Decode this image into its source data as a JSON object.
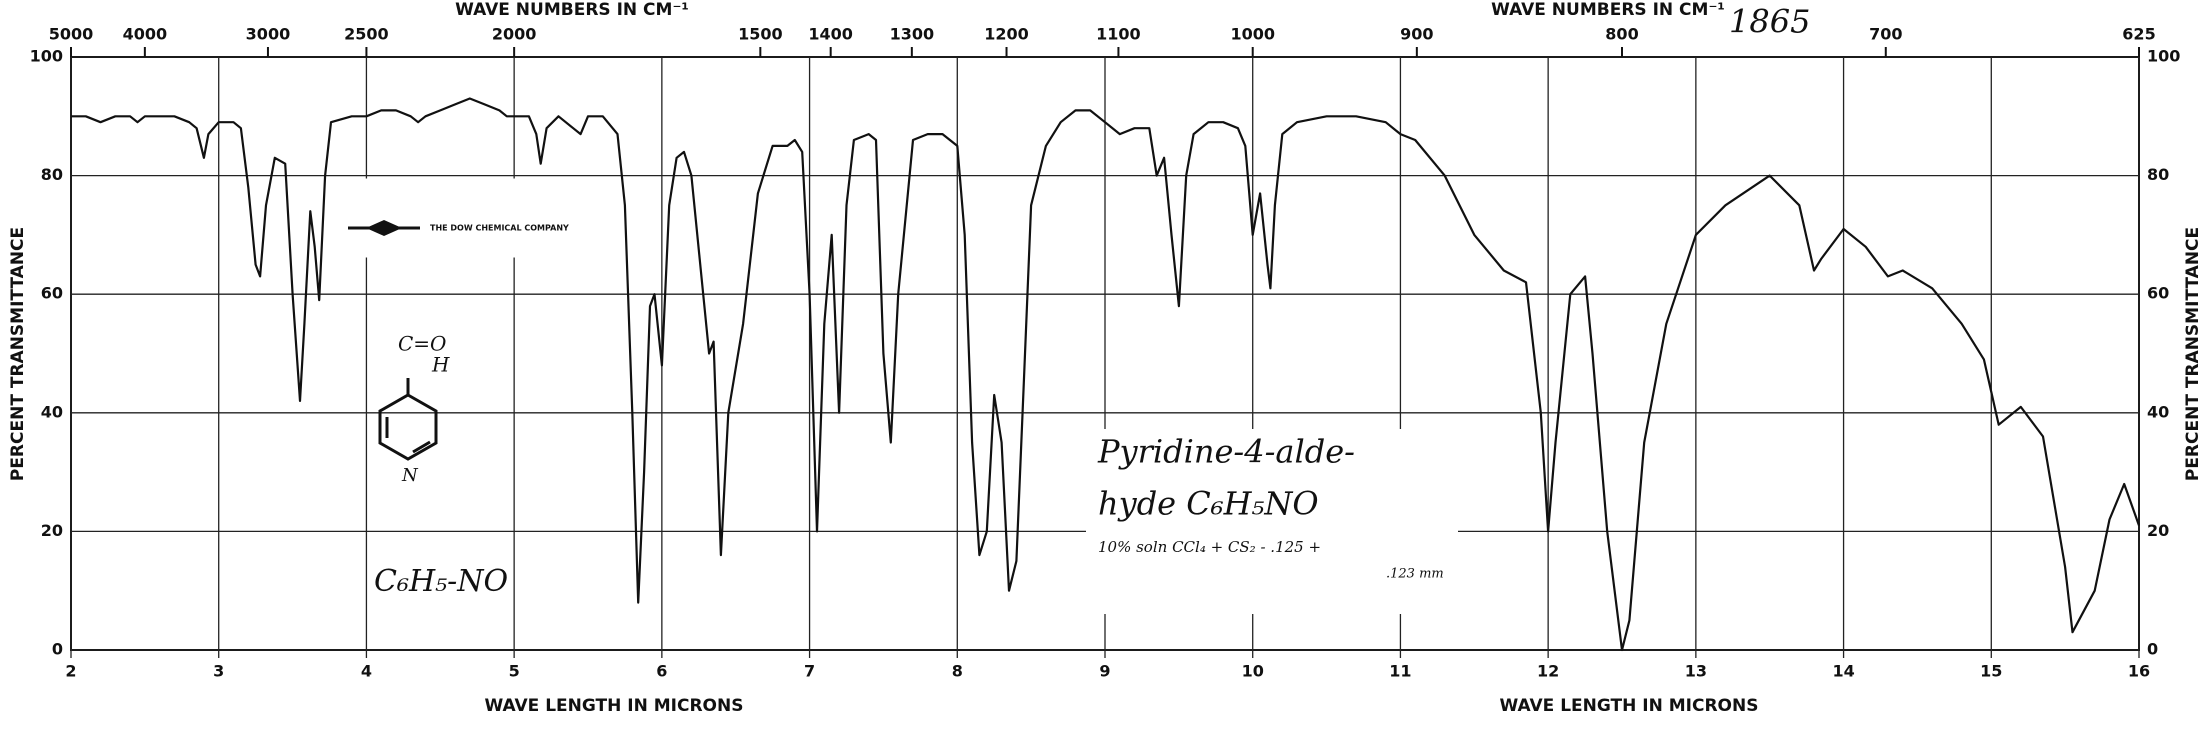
{
  "chart_data": {
    "type": "line",
    "x_label": "WAVE LENGTH IN MICRONS",
    "x2_label": "WAVE NUMBERS IN CM⁻¹",
    "y_label": "PERCENT TRANSMITTANCE",
    "company": "THE DOW CHEMICAL COMPANY",
    "annotations": [
      "1865",
      "Pyridine-4-alde-",
      "hyde C₆H₅NO",
      "10% soln CCl₄ + CS₂ - .125 +",
      ".123 mm",
      "C₆H₅-NO",
      "C=O",
      "H",
      "N"
    ],
    "color": "#111111",
    "grid": true,
    "xlim": [
      2,
      16
    ],
    "ylim": [
      0,
      100
    ],
    "xticks": [
      2,
      3,
      4,
      5,
      6,
      7,
      8,
      9,
      10,
      11,
      12,
      13,
      14,
      15,
      16
    ],
    "yticks": [
      0,
      20,
      40,
      60,
      80,
      100
    ],
    "x2ticks": [
      5000,
      4000,
      3000,
      2500,
      2000,
      1500,
      1400,
      1300,
      1200,
      1100,
      1000,
      900,
      800,
      700,
      625
    ],
    "x": [
      2.0,
      2.1,
      2.2,
      2.3,
      2.4,
      2.45,
      2.5,
      2.6,
      2.7,
      2.8,
      2.85,
      2.9,
      2.93,
      3.0,
      3.1,
      3.15,
      3.2,
      3.25,
      3.28,
      3.32,
      3.38,
      3.45,
      3.5,
      3.55,
      3.58,
      3.62,
      3.65,
      3.68,
      3.72,
      3.76,
      3.9,
      4.0,
      4.1,
      4.2,
      4.3,
      4.35,
      4.4,
      4.5,
      4.6,
      4.7,
      4.8,
      4.9,
      4.95,
      5.0,
      5.1,
      5.15,
      5.18,
      5.22,
      5.3,
      5.4,
      5.45,
      5.5,
      5.6,
      5.7,
      5.75,
      5.8,
      5.84,
      5.88,
      5.92,
      5.95,
      6.0,
      6.05,
      6.1,
      6.15,
      6.2,
      6.28,
      6.32,
      6.35,
      6.4,
      6.45,
      6.55,
      6.65,
      6.75,
      6.85,
      6.9,
      6.95,
      7.0,
      7.05,
      7.1,
      7.15,
      7.2,
      7.25,
      7.3,
      7.4,
      7.45,
      7.5,
      7.55,
      7.6,
      7.7,
      7.8,
      7.9,
      8.0,
      8.05,
      8.1,
      8.15,
      8.2,
      8.25,
      8.3,
      8.35,
      8.4,
      8.45,
      8.5,
      8.6,
      8.7,
      8.8,
      8.9,
      9.0,
      9.1,
      9.2,
      9.3,
      9.35,
      9.4,
      9.45,
      9.5,
      9.55,
      9.6,
      9.7,
      9.8,
      9.9,
      9.95,
      10.0,
      10.05,
      10.1,
      10.12,
      10.15,
      10.2,
      10.3,
      10.5,
      10.7,
      10.9,
      11.0,
      11.1,
      11.3,
      11.5,
      11.7,
      11.85,
      11.95,
      12.0,
      12.05,
      12.15,
      12.25,
      12.3,
      12.4,
      12.5,
      12.55,
      12.65,
      12.8,
      13.0,
      13.2,
      13.5,
      13.7,
      13.8,
      13.85,
      14.0,
      14.15,
      14.3,
      14.4,
      14.6,
      14.8,
      14.95,
      15.05,
      15.2,
      15.35,
      15.5,
      15.55,
      15.7,
      15.8,
      15.9,
      16.0
    ],
    "values": [
      90,
      90,
      89,
      90,
      90,
      89,
      90,
      90,
      90,
      89,
      88,
      83,
      87,
      89,
      89,
      88,
      78,
      65,
      63,
      75,
      83,
      82,
      60,
      42,
      55,
      74,
      68,
      59,
      80,
      89,
      90,
      90,
      91,
      91,
      90,
      89,
      90,
      91,
      92,
      93,
      92,
      91,
      90,
      90,
      90,
      87,
      82,
      88,
      90,
      88,
      87,
      90,
      90,
      87,
      75,
      40,
      8,
      30,
      58,
      60,
      48,
      75,
      83,
      84,
      80,
      60,
      50,
      52,
      16,
      40,
      55,
      77,
      85,
      85,
      86,
      84,
      60,
      20,
      55,
      70,
      40,
      75,
      86,
      87,
      86,
      50,
      35,
      60,
      86,
      87,
      87,
      85,
      70,
      35,
      16,
      20,
      43,
      35,
      10,
      15,
      45,
      75,
      85,
      89,
      91,
      91,
      89,
      87,
      88,
      88,
      80,
      83,
      70,
      58,
      80,
      87,
      89,
      89,
      88,
      85,
      70,
      77,
      65,
      61,
      75,
      87,
      89,
      90,
      90,
      89,
      87,
      86,
      80,
      70,
      64,
      62,
      40,
      20,
      35,
      60,
      63,
      50,
      20,
      0,
      5,
      35,
      55,
      70,
      75,
      80,
      75,
      64,
      66,
      71,
      68,
      63,
      64,
      61,
      55,
      49,
      38,
      41,
      36,
      14,
      3,
      10,
      22,
      28,
      21
    ]
  }
}
